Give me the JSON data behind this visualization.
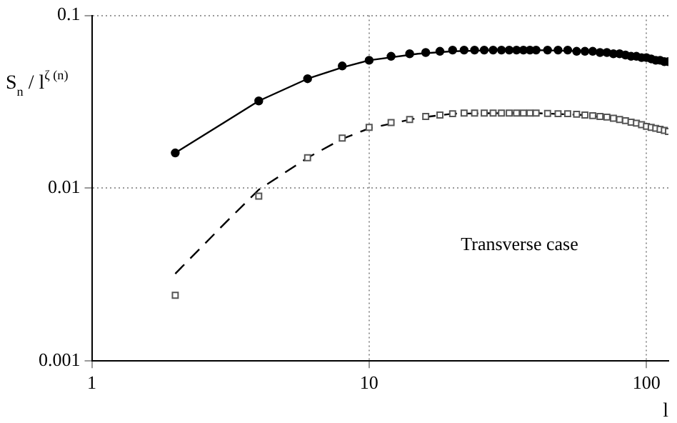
{
  "chart_data": {
    "type": "scatter",
    "xlabel": "l",
    "ylabel": "S$_{n}$ / l$^{ζ (n)}$",
    "log": "xy",
    "grid": true,
    "legend": false,
    "xlim": [
      1,
      120
    ],
    "ylim": [
      0.001,
      0.1
    ],
    "xticks": [
      1,
      10,
      100
    ],
    "yticks": [
      0.001,
      0.01,
      0.1
    ],
    "annotations": [
      "Transverse case"
    ],
    "series": [
      {
        "marker": "circle",
        "color": "#000000",
        "x": [
          2,
          4,
          6,
          8,
          10,
          12,
          14,
          16,
          18,
          20,
          22,
          24,
          26,
          28,
          30,
          32,
          34,
          36,
          38,
          40,
          44,
          48,
          52,
          56,
          60,
          64,
          68,
          72,
          76,
          80,
          84,
          88,
          92,
          96,
          100,
          104,
          108,
          112,
          116,
          120
        ],
        "values": [
          0.016,
          0.032,
          0.043,
          0.051,
          0.055,
          0.058,
          0.06,
          0.061,
          0.062,
          0.063,
          0.063,
          0.063,
          0.063,
          0.063,
          0.063,
          0.063,
          0.063,
          0.063,
          0.063,
          0.063,
          0.063,
          0.063,
          0.063,
          0.062,
          0.062,
          0.062,
          0.061,
          0.061,
          0.06,
          0.06,
          0.059,
          0.058,
          0.058,
          0.057,
          0.057,
          0.056,
          0.055,
          0.055,
          0.054,
          0.054
        ]
      },
      {
        "marker": "square",
        "color": "#555555",
        "x": [
          2,
          4,
          6,
          8,
          10,
          12,
          14,
          16,
          18,
          20,
          22,
          24,
          26,
          28,
          30,
          32,
          34,
          36,
          38,
          40,
          44,
          48,
          52,
          56,
          60,
          64,
          68,
          72,
          76,
          80,
          84,
          88,
          92,
          96,
          100,
          104,
          108,
          112,
          116,
          120
        ],
        "values": [
          0.0024,
          0.009,
          0.015,
          0.0195,
          0.0225,
          0.024,
          0.025,
          0.026,
          0.0265,
          0.027,
          0.0272,
          0.0272,
          0.0272,
          0.0272,
          0.0272,
          0.0272,
          0.0272,
          0.0272,
          0.0272,
          0.0272,
          0.0271,
          0.027,
          0.027,
          0.0268,
          0.0265,
          0.0263,
          0.026,
          0.0258,
          0.0254,
          0.025,
          0.0246,
          0.0241,
          0.0238,
          0.0233,
          0.0228,
          0.0225,
          0.0222,
          0.0219,
          0.0216,
          0.0213
        ]
      },
      {
        "type": "line",
        "line_style": "solid",
        "color": "#000000",
        "x": [
          2,
          3,
          4,
          6,
          8,
          10,
          15,
          20,
          30,
          40,
          60,
          80,
          100,
          120
        ],
        "values": [
          0.016,
          0.024,
          0.032,
          0.043,
          0.05,
          0.055,
          0.06,
          0.062,
          0.063,
          0.063,
          0.062,
          0.06,
          0.057,
          0.054
        ]
      },
      {
        "type": "line",
        "line_style": "dashed",
        "color": "#000000",
        "x": [
          2,
          3,
          4,
          6,
          8,
          10,
          15,
          20,
          30,
          40,
          60,
          80,
          100,
          120
        ],
        "values": [
          0.0032,
          0.0062,
          0.0098,
          0.015,
          0.0193,
          0.0222,
          0.0255,
          0.027,
          0.0272,
          0.0272,
          0.0265,
          0.025,
          0.0228,
          0.0213
        ]
      }
    ]
  }
}
